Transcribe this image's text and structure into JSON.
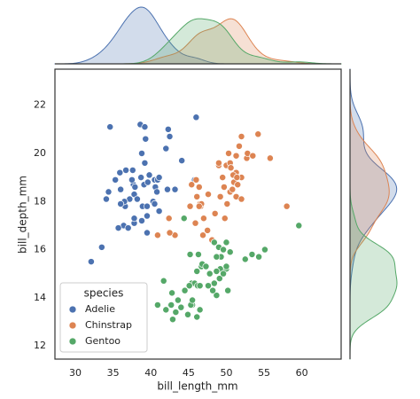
{
  "chart_data": {
    "type": "scatter",
    "x_label": "bill_length_mm",
    "y_label": "bill_depth_mm",
    "legend_title": "species",
    "legend_position": "lower left",
    "grid": false,
    "xlim": [
      27.3,
      65.2
    ],
    "ylim": [
      11.45,
      23.5
    ],
    "xticks": [
      30,
      35,
      40,
      45,
      50,
      55,
      60
    ],
    "yticks": [
      12,
      14,
      16,
      18,
      20,
      22
    ],
    "marginal": "kde",
    "series": [
      {
        "name": "Adelie",
        "color": "#4c72b0",
        "x": [
          39.1,
          39.5,
          40.3,
          36.7,
          39.3,
          38.9,
          39.2,
          34.1,
          42.0,
          37.8,
          37.8,
          41.1,
          38.6,
          34.6,
          36.6,
          38.7,
          42.5,
          34.4,
          46.0,
          37.8,
          37.7,
          35.9,
          38.2,
          38.8,
          35.3,
          40.6,
          40.5,
          37.9,
          40.5,
          39.5,
          37.2,
          39.5,
          40.9,
          36.4,
          39.2,
          38.8,
          42.2,
          37.6,
          39.8,
          36.5,
          40.8,
          36.0,
          44.1,
          37.0,
          39.6,
          41.1,
          37.5,
          36.0,
          42.3,
          32.1,
          33.5,
          35.7,
          45.8,
          43.2
        ],
        "y": [
          18.7,
          17.4,
          18.0,
          19.3,
          20.6,
          17.8,
          19.6,
          18.1,
          20.2,
          17.1,
          17.3,
          17.6,
          21.2,
          21.1,
          17.8,
          19.0,
          20.7,
          18.4,
          21.5,
          18.3,
          18.7,
          19.2,
          18.1,
          17.2,
          18.9,
          18.6,
          17.9,
          18.6,
          18.9,
          16.7,
          18.1,
          17.8,
          18.9,
          17.0,
          21.1,
          20.0,
          18.5,
          19.3,
          19.1,
          18.0,
          18.4,
          18.5,
          19.7,
          16.9,
          18.8,
          19.0,
          18.9,
          17.9,
          21.0,
          15.5,
          16.1,
          16.9,
          18.9,
          18.5
        ]
      },
      {
        "name": "Chinstrap",
        "color": "#dd8452",
        "x": [
          46.5,
          50.0,
          51.3,
          45.4,
          52.7,
          45.2,
          46.1,
          51.3,
          46.0,
          51.3,
          46.6,
          51.7,
          47.0,
          52.0,
          45.9,
          50.5,
          50.3,
          58.0,
          46.4,
          49.2,
          42.4,
          48.5,
          43.2,
          50.6,
          46.7,
          52.0,
          50.5,
          49.5,
          46.4,
          52.8,
          40.9,
          54.2,
          42.5,
          51.0,
          49.7,
          47.5,
          47.6,
          52.0,
          46.9,
          53.5,
          49.0,
          55.8,
          50.9,
          50.8,
          50.1,
          49.0,
          51.5,
          49.8,
          48.1,
          51.4
        ],
        "y": [
          17.9,
          19.5,
          19.2,
          18.7,
          19.8,
          17.8,
          18.2,
          18.2,
          18.9,
          19.9,
          17.8,
          20.3,
          17.3,
          18.1,
          17.1,
          19.6,
          20.0,
          17.8,
          18.6,
          18.2,
          17.3,
          17.5,
          16.6,
          19.4,
          17.9,
          19.0,
          18.4,
          19.0,
          17.8,
          20.0,
          16.6,
          20.8,
          16.7,
          18.8,
          18.6,
          16.8,
          18.3,
          20.7,
          16.6,
          19.9,
          19.5,
          19.8,
          19.1,
          18.5,
          17.9,
          19.6,
          18.7,
          17.3,
          16.4,
          19.0
        ]
      },
      {
        "name": "Gentoo",
        "color": "#55a868",
        "x": [
          46.1,
          50.0,
          48.7,
          50.0,
          47.6,
          46.5,
          45.4,
          46.7,
          43.3,
          46.8,
          40.9,
          49.0,
          45.5,
          48.4,
          45.8,
          49.3,
          42.0,
          49.2,
          46.2,
          48.7,
          50.2,
          45.1,
          46.5,
          46.3,
          42.9,
          46.1,
          44.5,
          47.8,
          48.2,
          50.0,
          47.3,
          42.8,
          45.1,
          59.6,
          49.1,
          48.4,
          42.6,
          44.4,
          44.0,
          48.7,
          42.7,
          49.6,
          45.3,
          49.6,
          50.5,
          43.6,
          45.5,
          50.5,
          44.9,
          45.2,
          54.3,
          55.1,
          53.4,
          52.5,
          41.7
        ],
        "y": [
          13.2,
          16.3,
          14.1,
          15.2,
          14.5,
          13.5,
          14.6,
          15.3,
          13.4,
          15.4,
          13.7,
          16.1,
          13.7,
          14.6,
          14.6,
          15.7,
          13.5,
          15.2,
          14.5,
          15.1,
          14.3,
          14.5,
          14.5,
          15.8,
          13.1,
          15.1,
          14.3,
          15.0,
          14.3,
          15.3,
          15.3,
          14.2,
          14.5,
          17.0,
          14.8,
          16.3,
          13.7,
          17.3,
          13.6,
          15.7,
          13.7,
          16.0,
          13.7,
          15.0,
          15.9,
          13.9,
          13.9,
          15.9,
          13.3,
          15.8,
          15.7,
          16.0,
          15.8,
          15.6,
          14.7
        ]
      }
    ]
  }
}
